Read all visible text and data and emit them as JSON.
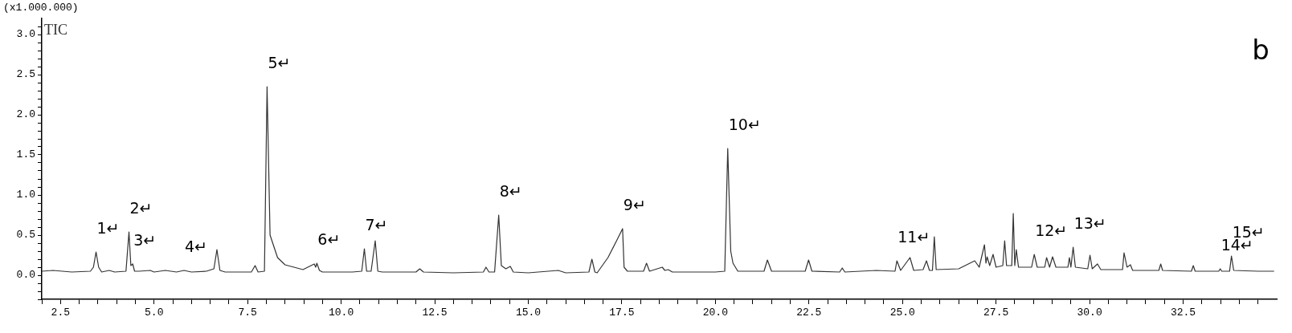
{
  "chart_data": {
    "type": "line",
    "title": "b",
    "ylabel": "(x1.000.000)",
    "xlim": [
      2.0,
      35.0
    ],
    "ylim": [
      -0.3,
      3.2
    ],
    "xticks": [
      {
        "value": 2.0,
        "label": null
      },
      {
        "value": 2.5,
        "label": "2.5"
      },
      {
        "value": 3.0,
        "label": null
      },
      {
        "value": 3.5,
        "label": null
      },
      {
        "value": 4.0,
        "label": null
      },
      {
        "value": 4.5,
        "label": null
      },
      {
        "value": 5.0,
        "label": "5.0"
      },
      {
        "value": 5.5,
        "label": null
      },
      {
        "value": 6.0,
        "label": null
      },
      {
        "value": 6.5,
        "label": null
      },
      {
        "value": 7.0,
        "label": null
      },
      {
        "value": 7.5,
        "label": "7.5"
      },
      {
        "value": 8.0,
        "label": null
      },
      {
        "value": 8.5,
        "label": null
      },
      {
        "value": 9.0,
        "label": null
      },
      {
        "value": 9.5,
        "label": null
      },
      {
        "value": 10.0,
        "label": "10.0"
      },
      {
        "value": 10.5,
        "label": null
      },
      {
        "value": 11.0,
        "label": null
      },
      {
        "value": 11.5,
        "label": null
      },
      {
        "value": 12.0,
        "label": null
      },
      {
        "value": 12.5,
        "label": "12.5"
      },
      {
        "value": 13.0,
        "label": null
      },
      {
        "value": 13.5,
        "label": null
      },
      {
        "value": 14.0,
        "label": null
      },
      {
        "value": 14.5,
        "label": null
      },
      {
        "value": 15.0,
        "label": "15.0"
      },
      {
        "value": 15.5,
        "label": null
      },
      {
        "value": 16.0,
        "label": null
      },
      {
        "value": 16.5,
        "label": null
      },
      {
        "value": 17.0,
        "label": null
      },
      {
        "value": 17.5,
        "label": "17.5"
      },
      {
        "value": 18.0,
        "label": null
      },
      {
        "value": 18.5,
        "label": null
      },
      {
        "value": 19.0,
        "label": null
      },
      {
        "value": 19.5,
        "label": null
      },
      {
        "value": 20.0,
        "label": "20.0"
      },
      {
        "value": 20.5,
        "label": null
      },
      {
        "value": 21.0,
        "label": null
      },
      {
        "value": 21.5,
        "label": null
      },
      {
        "value": 22.0,
        "label": null
      },
      {
        "value": 22.5,
        "label": "22.5"
      },
      {
        "value": 23.0,
        "label": null
      },
      {
        "value": 23.5,
        "label": null
      },
      {
        "value": 24.0,
        "label": null
      },
      {
        "value": 24.5,
        "label": null
      },
      {
        "value": 25.0,
        "label": "25.0"
      },
      {
        "value": 25.5,
        "label": null
      },
      {
        "value": 26.0,
        "label": null
      },
      {
        "value": 26.5,
        "label": null
      },
      {
        "value": 27.0,
        "label": null
      },
      {
        "value": 27.5,
        "label": "27.5"
      },
      {
        "value": 28.0,
        "label": null
      },
      {
        "value": 28.5,
        "label": null
      },
      {
        "value": 29.0,
        "label": null
      },
      {
        "value": 29.5,
        "label": null
      },
      {
        "value": 30.0,
        "label": "30.0"
      },
      {
        "value": 30.5,
        "label": null
      },
      {
        "value": 31.0,
        "label": null
      },
      {
        "value": 31.5,
        "label": null
      },
      {
        "value": 32.0,
        "label": null
      },
      {
        "value": 32.5,
        "label": "32.5"
      },
      {
        "value": 33.0,
        "label": null
      },
      {
        "value": 33.5,
        "label": null
      },
      {
        "value": 34.0,
        "label": null
      },
      {
        "value": 34.5,
        "label": null
      }
    ],
    "yticks": [
      {
        "value": -0.3,
        "label": null
      },
      {
        "value": -0.2,
        "label": null
      },
      {
        "value": -0.1,
        "label": null
      },
      {
        "value": 0.0,
        "label": "0.0"
      },
      {
        "value": 0.1,
        "label": null
      },
      {
        "value": 0.2,
        "label": null
      },
      {
        "value": 0.3,
        "label": null
      },
      {
        "value": 0.4,
        "label": null
      },
      {
        "value": 0.5,
        "label": "0.5"
      },
      {
        "value": 0.6,
        "label": null
      },
      {
        "value": 0.7,
        "label": null
      },
      {
        "value": 0.8,
        "label": null
      },
      {
        "value": 0.9,
        "label": null
      },
      {
        "value": 1.0,
        "label": "1.0"
      },
      {
        "value": 1.1,
        "label": null
      },
      {
        "value": 1.2,
        "label": null
      },
      {
        "value": 1.3,
        "label": null
      },
      {
        "value": 1.4,
        "label": null
      },
      {
        "value": 1.5,
        "label": "1.5"
      },
      {
        "value": 1.6,
        "label": null
      },
      {
        "value": 1.7,
        "label": null
      },
      {
        "value": 1.8,
        "label": null
      },
      {
        "value": 1.9,
        "label": null
      },
      {
        "value": 2.0,
        "label": "2.0"
      },
      {
        "value": 2.1,
        "label": null
      },
      {
        "value": 2.2,
        "label": null
      },
      {
        "value": 2.3,
        "label": null
      },
      {
        "value": 2.4,
        "label": null
      },
      {
        "value": 2.5,
        "label": "2.5"
      },
      {
        "value": 2.6,
        "label": null
      },
      {
        "value": 2.7,
        "label": null
      },
      {
        "value": 2.8,
        "label": null
      },
      {
        "value": 2.9,
        "label": null
      },
      {
        "value": 3.0,
        "label": "3.0"
      },
      {
        "value": 3.1,
        "label": null
      }
    ],
    "grid": false,
    "legend": false,
    "marker": "none",
    "line_style": "solid",
    "series": [
      {
        "name": "TIC",
        "color": "#333333",
        "x": [
          2.0,
          2.3,
          2.8,
          3.3,
          3.38,
          3.45,
          3.52,
          3.6,
          3.8,
          3.95,
          4.25,
          4.33,
          4.38,
          4.43,
          4.48,
          4.6,
          4.9,
          5.0,
          5.3,
          5.6,
          5.8,
          6.0,
          6.4,
          6.6,
          6.68,
          6.76,
          6.9,
          7.6,
          7.7,
          7.78,
          7.95,
          8.02,
          8.1,
          8.3,
          8.5,
          8.98,
          9.28,
          9.32,
          9.35,
          9.42,
          9.5,
          10.3,
          10.55,
          10.62,
          10.68,
          10.8,
          10.91,
          10.98,
          11.1,
          12.0,
          12.1,
          12.2,
          13.0,
          13.8,
          13.87,
          13.95,
          14.1,
          14.21,
          14.28,
          14.4,
          14.52,
          14.6,
          15.0,
          15.8,
          16.0,
          16.62,
          16.7,
          16.78,
          16.84,
          17.13,
          17.36,
          17.52,
          17.56,
          17.65,
          18.08,
          18.16,
          18.24,
          18.58,
          18.65,
          18.74,
          18.85,
          20.0,
          20.25,
          20.33,
          20.41,
          20.47,
          20.6,
          21.3,
          21.39,
          21.5,
          22.4,
          22.49,
          22.58,
          23.32,
          23.39,
          23.46,
          24.3,
          24.8,
          24.85,
          24.95,
          25.2,
          25.3,
          25.55,
          25.64,
          25.72,
          25.8,
          25.85,
          25.9,
          26.5,
          26.93,
          27.05,
          27.19,
          27.23,
          27.26,
          27.33,
          27.42,
          27.5,
          27.68,
          27.73,
          27.78,
          27.92,
          27.96,
          28.0,
          28.04,
          28.1,
          28.45,
          28.52,
          28.6,
          28.8,
          28.85,
          28.93,
          29.01,
          29.1,
          29.42,
          29.46,
          29.5,
          29.56,
          29.62,
          29.95,
          30.01,
          30.07,
          30.21,
          30.3,
          30.88,
          30.92,
          31.0,
          31.09,
          31.15,
          31.85,
          31.9,
          31.95,
          32.72,
          32.77,
          32.82,
          33.45,
          33.49,
          33.53,
          33.74,
          33.79,
          33.85,
          34.5,
          34.93
        ],
        "values": [
          0.05,
          0.06,
          0.04,
          0.05,
          0.1,
          0.29,
          0.1,
          0.04,
          0.06,
          0.04,
          0.05,
          0.54,
          0.12,
          0.14,
          0.05,
          0.05,
          0.06,
          0.04,
          0.06,
          0.04,
          0.06,
          0.04,
          0.05,
          0.08,
          0.32,
          0.06,
          0.04,
          0.04,
          0.12,
          0.04,
          0.05,
          2.35,
          0.5,
          0.22,
          0.13,
          0.07,
          0.14,
          0.1,
          0.15,
          0.06,
          0.04,
          0.04,
          0.05,
          0.33,
          0.05,
          0.05,
          0.43,
          0.05,
          0.04,
          0.04,
          0.08,
          0.04,
          0.03,
          0.04,
          0.1,
          0.04,
          0.04,
          0.75,
          0.12,
          0.08,
          0.11,
          0.04,
          0.03,
          0.06,
          0.03,
          0.04,
          0.2,
          0.04,
          0.03,
          0.22,
          0.43,
          0.58,
          0.1,
          0.05,
          0.05,
          0.15,
          0.05,
          0.1,
          0.06,
          0.07,
          0.04,
          0.04,
          0.05,
          1.58,
          0.3,
          0.15,
          0.05,
          0.05,
          0.19,
          0.05,
          0.05,
          0.19,
          0.05,
          0.04,
          0.09,
          0.04,
          0.06,
          0.05,
          0.18,
          0.06,
          0.22,
          0.06,
          0.07,
          0.18,
          0.06,
          0.06,
          0.48,
          0.07,
          0.08,
          0.18,
          0.1,
          0.38,
          0.15,
          0.23,
          0.12,
          0.26,
          0.1,
          0.12,
          0.43,
          0.12,
          0.12,
          0.77,
          0.12,
          0.32,
          0.1,
          0.1,
          0.26,
          0.1,
          0.1,
          0.22,
          0.1,
          0.23,
          0.1,
          0.1,
          0.22,
          0.1,
          0.35,
          0.1,
          0.08,
          0.25,
          0.08,
          0.14,
          0.07,
          0.07,
          0.28,
          0.1,
          0.13,
          0.06,
          0.06,
          0.14,
          0.06,
          0.05,
          0.12,
          0.05,
          0.05,
          0.08,
          0.05,
          0.05,
          0.24,
          0.06,
          0.05,
          0.05
        ]
      }
    ],
    "annotations": [
      {
        "text": "1↵",
        "x": 3.45,
        "y": 0.29
      },
      {
        "text": "2↵",
        "x": 4.33,
        "y": 0.54
      },
      {
        "text": "3↵",
        "x": 4.43,
        "y": 0.14
      },
      {
        "text": "4↵",
        "x": 5.8,
        "y": 0.06
      },
      {
        "text": "5↵",
        "x": 8.02,
        "y": 2.35
      },
      {
        "text": "6↵",
        "x": 9.35,
        "y": 0.15
      },
      {
        "text": "7↵",
        "x": 10.62,
        "y": 0.33
      },
      {
        "text": "8↵",
        "x": 14.21,
        "y": 0.75
      },
      {
        "text": "9↵",
        "x": 17.52,
        "y": 0.58
      },
      {
        "text": "10↵",
        "x": 20.33,
        "y": 1.58
      },
      {
        "text": "11↵",
        "x": 24.85,
        "y": 0.18
      },
      {
        "text": "12↵",
        "x": 28.52,
        "y": 0.26
      },
      {
        "text": "13↵",
        "x": 29.56,
        "y": 0.35
      },
      {
        "text": "14↵",
        "x": 33.49,
        "y": 0.08
      },
      {
        "text": "15↵",
        "x": 33.79,
        "y": 0.24
      }
    ]
  }
}
